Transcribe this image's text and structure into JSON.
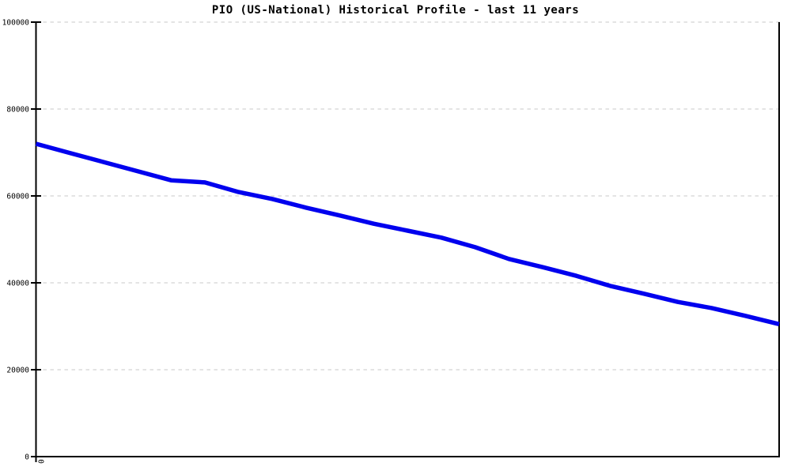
{
  "chart_data": {
    "type": "line",
    "title": "PIO (US-National) Historical Profile - last 11 years",
    "xlabel": "",
    "ylabel": "",
    "x": [
      0,
      0.5,
      1,
      1.5,
      2,
      2.5,
      3,
      3.5,
      4,
      4.5,
      5,
      5.5,
      6,
      6.5,
      7,
      7.5,
      8,
      8.5,
      9,
      9.5,
      10,
      10.5,
      11
    ],
    "values": [
      72000,
      69900,
      67800,
      65700,
      63600,
      63100,
      60900,
      59300,
      57300,
      55500,
      53600,
      52000,
      50400,
      48200,
      45500,
      43600,
      41600,
      39300,
      37500,
      35600,
      34200,
      32400,
      30500
    ],
    "xlim": [
      0,
      11
    ],
    "ylim": [
      0,
      100000
    ],
    "yticks": [
      0,
      20000,
      40000,
      60000,
      80000,
      100000
    ],
    "ytick_labels": [
      "0",
      "20000",
      "40000",
      "60000",
      "80000",
      "100000"
    ],
    "xticks": [
      0
    ],
    "xtick_labels": [
      "0"
    ],
    "grid": "horizontal-dashed",
    "legend": "none",
    "colors": {
      "line": "#0000ee",
      "grid": "#c8c8c8",
      "axis": "#000000",
      "title": "#000000",
      "background": "#ffffff"
    }
  }
}
